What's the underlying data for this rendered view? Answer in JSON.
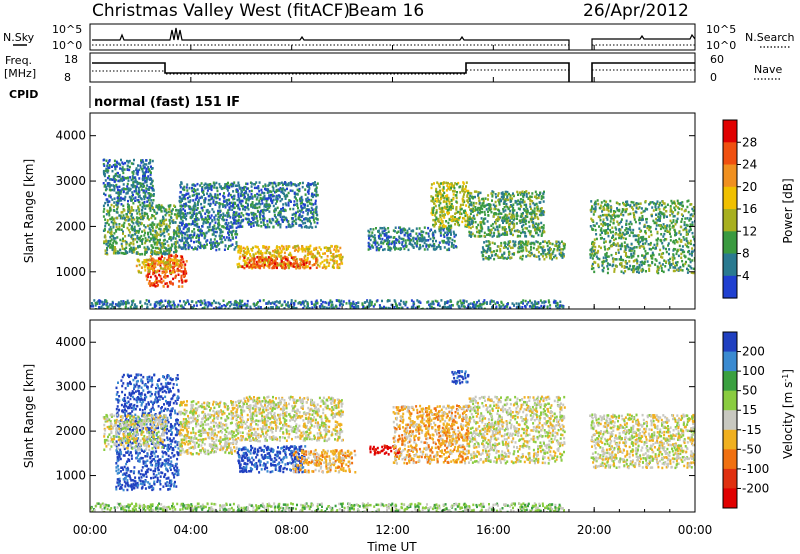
{
  "header": {
    "site": "Christmas Valley West (fitACF)",
    "beam": "Beam 16",
    "date": "26/Apr/2012"
  },
  "top_panels": {
    "nsky_label": "N.Sky",
    "nsky_ticks": [
      "10^5",
      "10^0"
    ],
    "nsearch_label": "N.Search",
    "nsearch_ticks": [
      "10^5",
      "10^0"
    ],
    "freq_label": "Freq.",
    "freq_unit": "[MHz]",
    "freq_ticks": [
      "18",
      "8"
    ],
    "nave_label": "Nave",
    "nave_ticks": [
      "60",
      "0"
    ],
    "cpid_label": "CPID",
    "cpid_text": "normal (fast) 151 IF"
  },
  "chart_data": [
    {
      "type": "heatmap",
      "title": "",
      "xlabel": "",
      "ylabel": "Slant Range [km]",
      "ylim": [
        180,
        4500
      ],
      "y_ticks": [
        "1000",
        "2000",
        "3000",
        "4000"
      ],
      "colorbar": {
        "label": "Power [dB]",
        "ticks": [
          "28",
          "24",
          "20",
          "16",
          "12",
          "8",
          "4"
        ],
        "colors": [
          "#e00000",
          "#f05010",
          "#f09020",
          "#f0c000",
          "#a8b020",
          "#3a9a40",
          "#2a7a90",
          "#2040d0"
        ]
      },
      "regions": [
        {
          "t0": 0.5,
          "t1": 2.5,
          "r0": 2500,
          "r1": 3500,
          "level": 1
        },
        {
          "t0": 0.5,
          "t1": 3.5,
          "r0": 1400,
          "r1": 2500,
          "level": 2
        },
        {
          "t0": 2.2,
          "t1": 3.8,
          "r0": 700,
          "r1": 1400,
          "level": 6
        },
        {
          "t0": 1.8,
          "t1": 3.5,
          "r0": 1000,
          "r1": 1300,
          "level": 4
        },
        {
          "t0": 3.5,
          "t1": 5.8,
          "r0": 1500,
          "r1": 3000,
          "level": 1
        },
        {
          "t0": 5.8,
          "t1": 10.0,
          "r0": 1100,
          "r1": 1600,
          "level": 4
        },
        {
          "t0": 6.0,
          "t1": 9.0,
          "r0": 1100,
          "r1": 1350,
          "level": 6
        },
        {
          "t0": 5.8,
          "t1": 9.0,
          "r0": 2000,
          "r1": 3000,
          "level": 1
        },
        {
          "t0": 11.0,
          "t1": 14.5,
          "r0": 1500,
          "r1": 2000,
          "level": 1
        },
        {
          "t0": 13.5,
          "t1": 15.0,
          "r0": 2000,
          "r1": 3000,
          "level": 3
        },
        {
          "t0": 15.0,
          "t1": 18.0,
          "r0": 1800,
          "r1": 2800,
          "level": 2
        },
        {
          "t0": 15.5,
          "t1": 18.8,
          "r0": 1300,
          "r1": 1700,
          "level": 2
        },
        {
          "t0": 19.8,
          "t1": 24.0,
          "r0": 1000,
          "r1": 2600,
          "level": 2
        },
        {
          "t0": 0.0,
          "t1": 18.8,
          "r0": 180,
          "r1": 400,
          "level": 1
        }
      ]
    },
    {
      "type": "heatmap",
      "title": "",
      "xlabel": "Time UT",
      "ylabel": "Slant Range [km]",
      "ylim": [
        180,
        4500
      ],
      "y_ticks": [
        "1000",
        "2000",
        "3000",
        "4000"
      ],
      "x_ticks": [
        "00:00",
        "04:00",
        "08:00",
        "12:00",
        "16:00",
        "20:00",
        "00:00"
      ],
      "colorbar": {
        "label": "Velocity [m s^-1]",
        "ticks": [
          "200",
          "100",
          "50",
          "15",
          "-15",
          "-50",
          "-100",
          "-200"
        ],
        "colors": [
          "#2040c0",
          "#3a8ad0",
          "#3aa040",
          "#8acc40",
          "#c8c8c0",
          "#f0b020",
          "#f07010",
          "#e03010",
          "#e00000"
        ]
      },
      "regions": [
        {
          "t0": 1.0,
          "t1": 3.5,
          "r0": 700,
          "r1": 3300,
          "level": 8
        },
        {
          "t0": 0.5,
          "t1": 3.0,
          "r0": 1600,
          "r1": 2400,
          "level": 4
        },
        {
          "t0": 3.5,
          "t1": 5.8,
          "r0": 1500,
          "r1": 2700,
          "level": 4
        },
        {
          "t0": 5.8,
          "t1": 8.5,
          "r0": 1100,
          "r1": 1700,
          "level": 8
        },
        {
          "t0": 8.0,
          "t1": 10.5,
          "r0": 1100,
          "r1": 1600,
          "level": 3
        },
        {
          "t0": 5.8,
          "t1": 10.0,
          "r0": 1800,
          "r1": 2800,
          "level": 4
        },
        {
          "t0": 11.0,
          "t1": 12.3,
          "r0": 1500,
          "r1": 1700,
          "level": 0
        },
        {
          "t0": 12.0,
          "t1": 15.0,
          "r0": 1300,
          "r1": 2600,
          "level": 3
        },
        {
          "t0": 14.3,
          "t1": 15.0,
          "r0": 3100,
          "r1": 3400,
          "level": 8
        },
        {
          "t0": 15.0,
          "t1": 18.8,
          "r0": 1300,
          "r1": 2800,
          "level": 4
        },
        {
          "t0": 19.8,
          "t1": 24.0,
          "r0": 1200,
          "r1": 2400,
          "level": 4
        },
        {
          "t0": 0.0,
          "t1": 18.8,
          "r0": 180,
          "r1": 400,
          "level": 5
        }
      ]
    }
  ]
}
